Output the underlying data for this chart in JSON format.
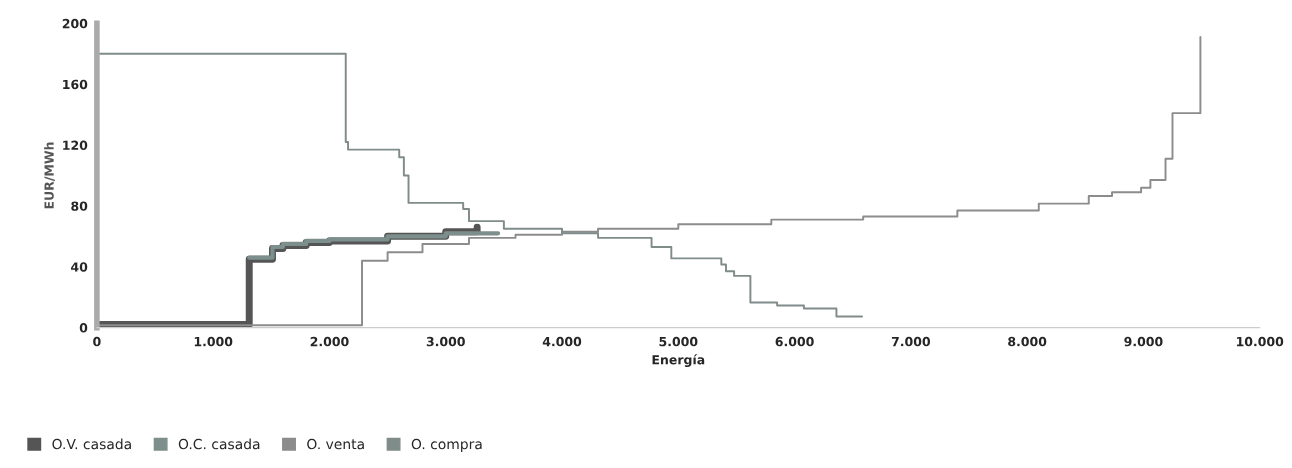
{
  "chart_data": {
    "type": "step",
    "xlabel": "Energía",
    "ylabel": "EUR/MWh",
    "xlim": [
      0,
      10000
    ],
    "ylim": [
      0,
      200
    ],
    "xticks": [
      0,
      {
        "value": 1000,
        "label": "1.000"
      },
      {
        "value": 2000,
        "label": "2.000"
      },
      {
        "value": 3000,
        "label": "3.000"
      },
      {
        "value": 4000,
        "label": "4.000"
      },
      {
        "value": 5000,
        "label": "5.000"
      },
      {
        "value": 6000,
        "label": "6.000"
      },
      {
        "value": 7000,
        "label": "7.000"
      },
      {
        "value": 8000,
        "label": "8.000"
      },
      {
        "value": 9000,
        "label": "9.000"
      },
      {
        "value": 10000,
        "label": "10.000"
      }
    ],
    "yticks": [
      0,
      40,
      80,
      120,
      160,
      200
    ],
    "grid": false,
    "legend": "bottom left",
    "line_style": "solid",
    "marker": "none",
    "series": [
      {
        "name": "O.V. casada",
        "color": "#555555",
        "x": [
          0,
          1310,
          1510,
          1600,
          1800,
          2000,
          2500,
          3000,
          3270
        ],
        "values": [
          2,
          45,
          52,
          54,
          56,
          57,
          60,
          63,
          66
        ]
      },
      {
        "name": "O.C. casada",
        "color": "#7d8f8c",
        "x": [
          1310,
          1510,
          1600,
          1800,
          2000,
          2500,
          3000,
          3450
        ],
        "values": [
          46,
          53,
          55,
          57,
          58,
          60,
          62,
          62
        ]
      },
      {
        "name": "O. venta",
        "color": "#8c8c8c",
        "x": [
          0,
          2280,
          2500,
          2800,
          3200,
          3600,
          4000,
          4310,
          5000,
          5800,
          6590,
          7400,
          8100,
          8530,
          8730,
          8980,
          9060,
          9190,
          9250,
          9490
        ],
        "values": [
          1.5,
          44,
          49.5,
          55,
          59,
          61,
          63,
          65,
          68,
          71,
          73,
          77,
          81.5,
          86.5,
          89,
          92,
          97,
          111,
          141,
          191
        ]
      },
      {
        "name": "O. compra",
        "color": "#7f8c8a",
        "x": [
          0,
          2140,
          2160,
          2600,
          2640,
          2680,
          3150,
          3200,
          3500,
          4000,
          4310,
          4770,
          4940,
          5370,
          5410,
          5480,
          5620,
          5850,
          6080,
          6360,
          6580
        ],
        "values": [
          180,
          122,
          117,
          112,
          100,
          82,
          78,
          70,
          65,
          62,
          59,
          53,
          45.5,
          41.5,
          37,
          34,
          16.5,
          14.5,
          12.5,
          7.3,
          7.3
        ]
      }
    ]
  }
}
